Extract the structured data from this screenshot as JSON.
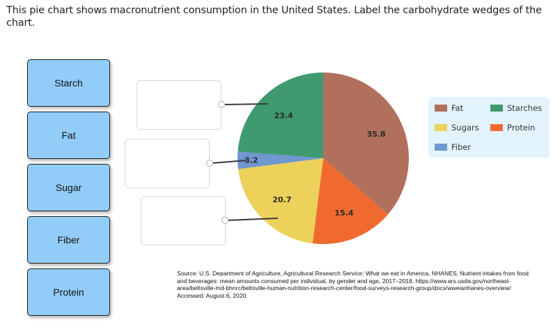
{
  "prompt": "This pie chart shows macronutrient consumption in the United States. Label the carbohydrate wedges of the chart.",
  "drag_items": [
    {
      "label": "Starch"
    },
    {
      "label": "Fat"
    },
    {
      "label": "Sugar"
    },
    {
      "label": "Fiber"
    },
    {
      "label": "Protein"
    }
  ],
  "drop_zones": [
    {
      "target": "Starches wedge",
      "value": ""
    },
    {
      "target": "Fiber wedge",
      "value": ""
    },
    {
      "target": "Sugars wedge",
      "value": ""
    }
  ],
  "legend": [
    {
      "label": "Fat",
      "color": "#b0705c"
    },
    {
      "label": "Starches",
      "color": "#3f9a70"
    },
    {
      "label": "Sugars",
      "color": "#ecd25a"
    },
    {
      "label": "Protein",
      "color": "#f06a30"
    },
    {
      "label": "Fiber",
      "color": "#6f97d0"
    }
  ],
  "source": "Source: U.S. Department of Agriculture, Agricultural Research Service: What we eat in America, NHANES, Nutrient intakes from food and beverages: mean amounts consumed per individual, by gender and age, 2017–2018. https://www.ars.usda.gov/northeast-area/beltsville-md-bhnrc/beltsville-human-nutrition-research-center/food-surveys-research-group/docs/wweianhanes-overview/ Accessed: August 6, 2020.",
  "chart_data": {
    "type": "pie",
    "title": "Macronutrient consumption in the United States",
    "categories": [
      "Fat",
      "Protein",
      "Sugars",
      "Fiber",
      "Starches"
    ],
    "values": [
      35.8,
      15.4,
      20.7,
      3.2,
      23.4
    ],
    "colors": [
      "#b0705c",
      "#f06a30",
      "#ecd25a",
      "#6f97d0",
      "#3f9a70"
    ],
    "data_labels": [
      "35.8",
      "15.4",
      "20.7",
      "3.2",
      "23.4"
    ],
    "start_angle": "12 o'clock, clockwise",
    "legend_position": "right",
    "legend_entries": [
      "Fat",
      "Starches",
      "Sugars",
      "Protein",
      "Fiber"
    ]
  }
}
